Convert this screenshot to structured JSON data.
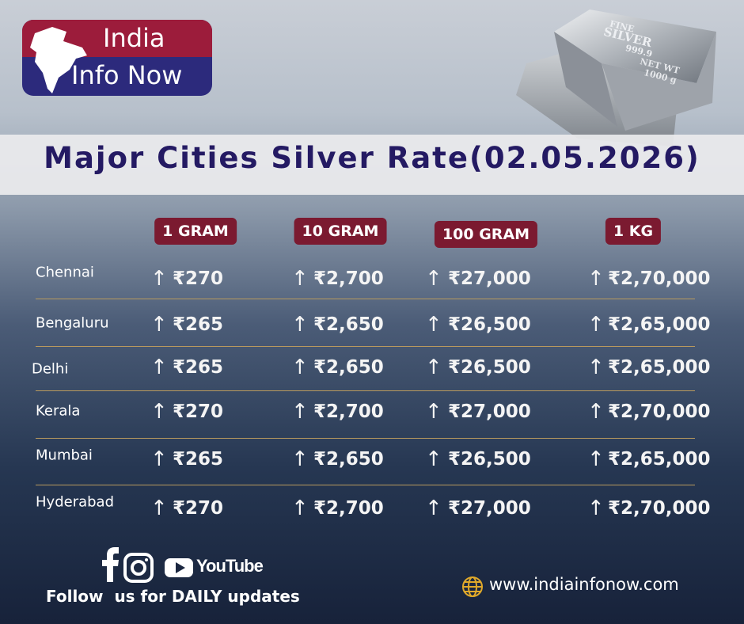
{
  "logo": {
    "line1": "India",
    "line2": "Info Now"
  },
  "bar_image": {
    "line1": "FINE",
    "line2": "SILVER",
    "line3": "999.9",
    "line4": "NET WT",
    "line5": "1000 g"
  },
  "title": "Major Cities Silver Rate(02.05.2026)",
  "table": {
    "headers": [
      "1 GRAM",
      "10 GRAM",
      "100 GRAM",
      "1 KG"
    ],
    "rows": [
      [
        "Chennai",
        "₹270",
        "₹2,700",
        "₹27,000",
        "₹2,70,000"
      ],
      [
        "Bengaluru",
        "₹265",
        "₹2,650",
        "₹26,500",
        "₹2,65,000"
      ],
      [
        "Delhi",
        "₹265",
        "₹2,650",
        "₹26,500",
        "₹2,65,000"
      ],
      [
        "Kerala",
        "₹270",
        "₹2,700",
        "₹27,000",
        "₹2,70,000"
      ],
      [
        "Mumbai",
        "₹265",
        "₹2,650",
        "₹26,500",
        "₹2,65,000"
      ],
      [
        "Hyderabad",
        "₹270",
        "₹2,700",
        "₹27,000",
        "₹2,70,000"
      ]
    ]
  },
  "footer": {
    "youtube": "YouTube",
    "follow": "Follow  us for DAILY updates",
    "website": "www.indiainfonow.com"
  }
}
